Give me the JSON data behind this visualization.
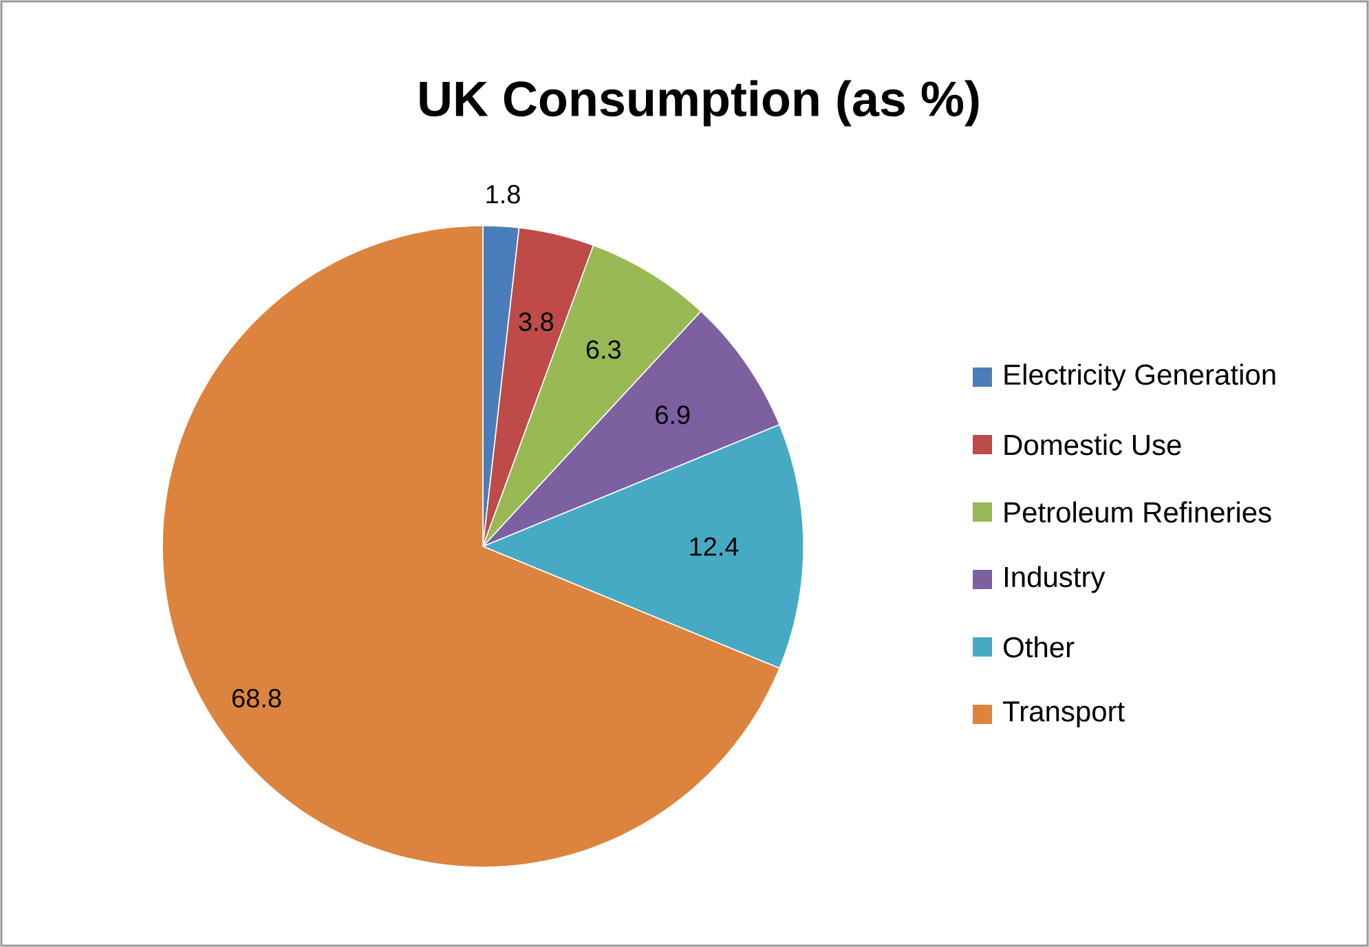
{
  "chart_data": {
    "type": "pie",
    "title": "UK Consumption (as %)",
    "categories": [
      "Electricity Generation",
      "Domestic Use",
      "Petroleum Refineries",
      "Industry",
      "Other",
      "Transport"
    ],
    "values": [
      1.8,
      3.8,
      6.3,
      6.9,
      12.4,
      68.8
    ],
    "colors": [
      "#4a7ebb",
      "#be4b48",
      "#98b954",
      "#7d60a0",
      "#46aac5",
      "#dc843d"
    ],
    "data_labels": true,
    "legend": "right"
  }
}
